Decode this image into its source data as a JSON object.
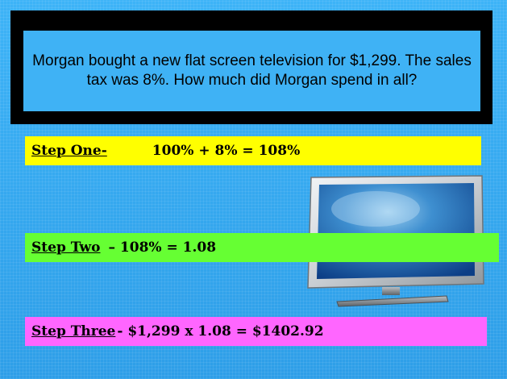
{
  "question": {
    "text": "Morgan bought a new flat screen television for $1,299.  The sales tax was 8%.  How much did Morgan spend in all?"
  },
  "steps": [
    {
      "label": "Step One-",
      "equation": "100% + 8% = 108%",
      "color": "#ffff00"
    },
    {
      "label": "Step Two",
      "equation": "– 108% = 1.08",
      "color": "#66ff33"
    },
    {
      "label": "Step Three",
      "equation": "- $1,299 x 1.08 = $1402.92",
      "color": "#ff66ff"
    }
  ],
  "colors": {
    "background": "#35a8f0",
    "frame": "#000000",
    "question_box": "#3fb2f5"
  },
  "icons": {
    "television": "flat-screen-tv-icon"
  }
}
